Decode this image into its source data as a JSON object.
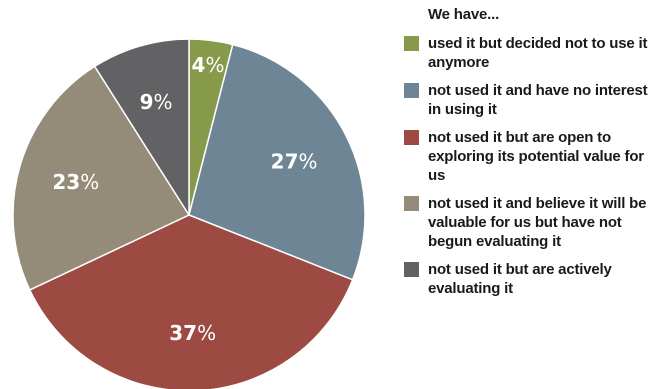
{
  "chart_data": {
    "type": "pie",
    "legend_title": "We have...",
    "legend_placement": "right",
    "slices": [
      {
        "label": "used it but decided not to use it anymore",
        "value": 4,
        "value_label": "4",
        "color": "#869a4a"
      },
      {
        "label": "not used it and have no interest in using it",
        "value": 27,
        "value_label": "27",
        "color": "#6e8595"
      },
      {
        "label": "not used it but are open to exploring its potential value for us",
        "value": 37,
        "value_label": "37",
        "color": "#9c4a42"
      },
      {
        "label": "not used it and believe it will be valuable for us but have not begun evaluating it",
        "value": 23,
        "value_label": "23",
        "color": "#958b79"
      },
      {
        "label": "not used it but are actively evaluating it",
        "value": 9,
        "value_label": "9",
        "color": "#626264"
      }
    ],
    "percent_sign": "%",
    "label_color": "#ffffff",
    "start_angle_deg": 0,
    "direction": "clockwise"
  }
}
